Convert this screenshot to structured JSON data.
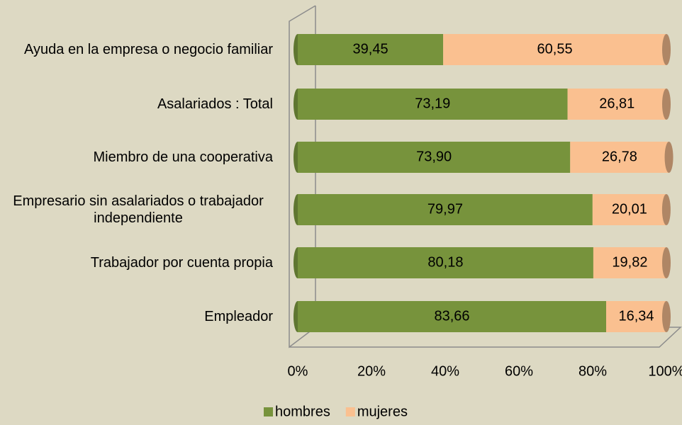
{
  "chart_data": {
    "type": "bar",
    "orientation": "horizontal",
    "stacked": true,
    "categories": [
      "Ayuda en la empresa o negocio familiar",
      "Asalariados : Total",
      "Miembro de una cooperativa",
      "Empresario sin asalariados o trabajador independiente",
      "Trabajador por cuenta propia",
      "Empleador"
    ],
    "series": [
      {
        "name": "hombres",
        "color": "#77933c",
        "values": [
          39.45,
          73.19,
          73.9,
          79.97,
          80.18,
          83.66
        ],
        "value_labels": [
          "39,45",
          "73,19",
          "73,90",
          "79,97",
          "80,18",
          "83,66"
        ]
      },
      {
        "name": "mujeres",
        "color": "#fac090",
        "values": [
          60.55,
          26.81,
          26.78,
          20.01,
          19.82,
          16.34
        ],
        "value_labels": [
          "60,55",
          "26,81",
          "26,78",
          "20,01",
          "19,82",
          "16,34"
        ]
      }
    ],
    "xlim": [
      0,
      100
    ],
    "xticks": [
      {
        "value": 0,
        "label": "0%"
      },
      {
        "value": 20,
        "label": "20%"
      },
      {
        "value": 40,
        "label": "40%"
      },
      {
        "value": 60,
        "label": "60%"
      },
      {
        "value": 80,
        "label": "80%"
      },
      {
        "value": 100,
        "label": "100%"
      }
    ],
    "legend": "bottom"
  }
}
